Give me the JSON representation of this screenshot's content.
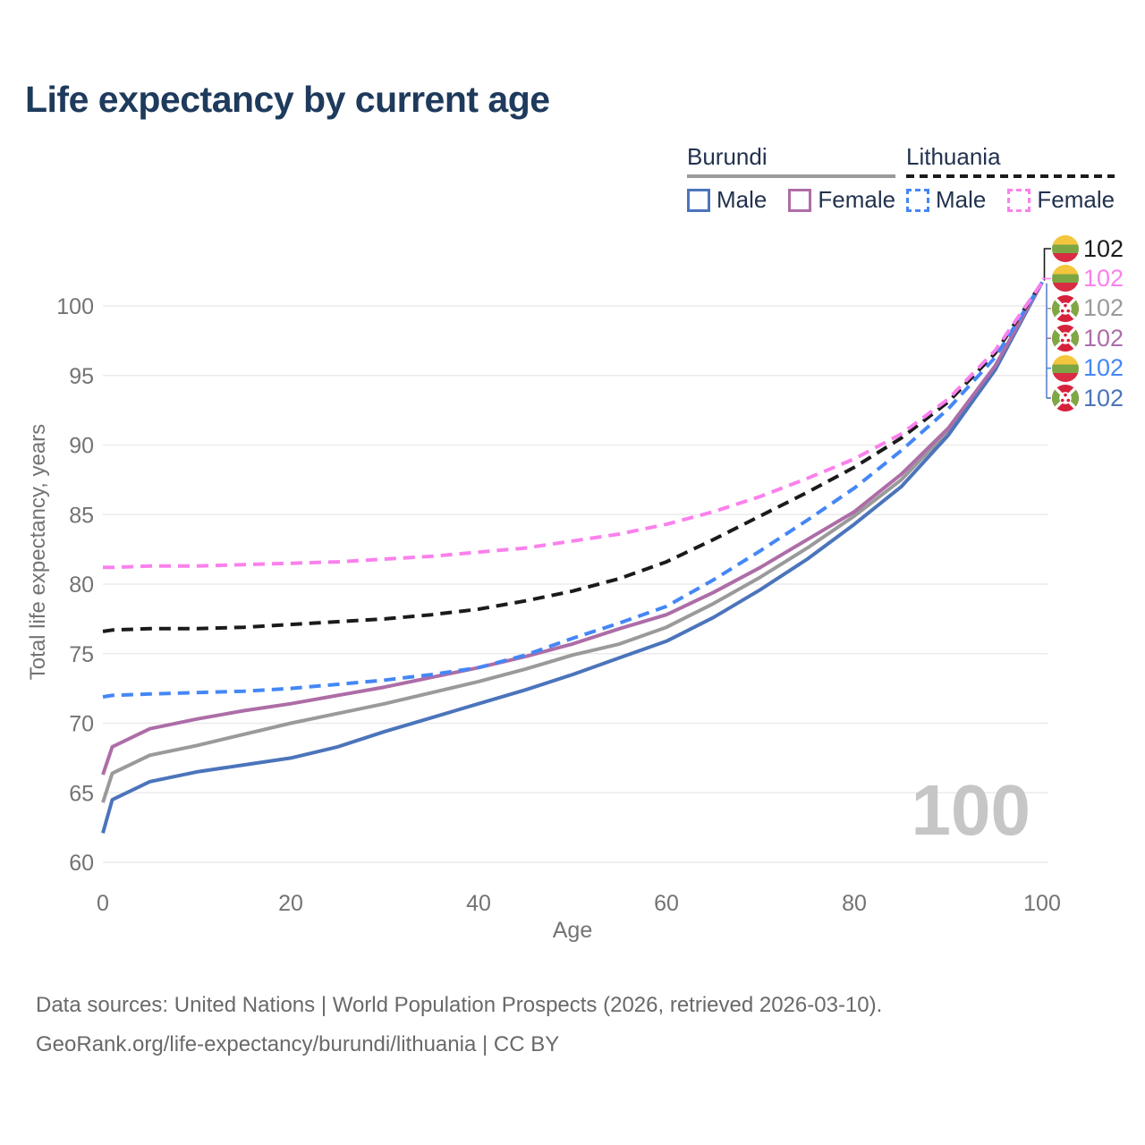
{
  "header": {
    "title": "Life expectancy by current age"
  },
  "legend": {
    "groups": [
      {
        "label": "Burundi",
        "line_style": "solid",
        "line_color": "#9a9a9a",
        "items": [
          {
            "label": "Male",
            "color": "#4b74bb",
            "dash": false
          },
          {
            "label": "Female",
            "color": "#ad6da7",
            "dash": false
          }
        ]
      },
      {
        "label": "Lithuania",
        "line_style": "dashed",
        "line_color": "#1b1b1b",
        "items": [
          {
            "label": "Male",
            "color": "#4487f6",
            "dash": true
          },
          {
            "label": "Female",
            "color": "#fb80ec",
            "dash": true
          }
        ]
      }
    ]
  },
  "plot": {
    "watermark": "100"
  },
  "end_labels": [
    {
      "flag": "lithuania",
      "value": "102",
      "color": "#1b1b1b",
      "series": "Lithuania both sexes"
    },
    {
      "flag": "lithuania",
      "value": "102",
      "color": "#fb80ec",
      "series": "Lithuania female"
    },
    {
      "flag": "burundi",
      "value": "102",
      "color": "#9a9a9a",
      "series": "Burundi both sexes"
    },
    {
      "flag": "burundi",
      "value": "102",
      "color": "#ad6da7",
      "series": "Burundi female"
    },
    {
      "flag": "lithuania",
      "value": "102",
      "color": "#4487f6",
      "series": "Lithuania male"
    },
    {
      "flag": "burundi",
      "value": "102",
      "color": "#4b74bb",
      "series": "Burundi male"
    }
  ],
  "footer": {
    "line1": "Data sources: United Nations | World Population Prospects (2026, retrieved 2026-03-10).",
    "line2": "GeoRank.org/life-expectancy/burundi/lithuania | CC BY"
  },
  "colors": {
    "title": "#1e3a5c",
    "axis_text": "#737373",
    "gridline": "#ebebeb",
    "watermark": "#c6c6c6",
    "leader_spine": "#5b82cf"
  },
  "chart_data": {
    "type": "line",
    "title": "Life expectancy by current age",
    "xlabel": "Age",
    "ylabel": "Total life expectancy, years",
    "xlim": [
      0,
      100
    ],
    "ylim": [
      60,
      100
    ],
    "xticks": [
      0,
      20,
      40,
      60,
      80,
      100
    ],
    "yticks": [
      60,
      65,
      70,
      75,
      80,
      85,
      90,
      95,
      100
    ],
    "grid": "horizontal",
    "legend_position": "top-right",
    "x": [
      0,
      1,
      5,
      10,
      15,
      20,
      25,
      30,
      35,
      40,
      45,
      50,
      55,
      60,
      65,
      70,
      75,
      80,
      85,
      90,
      95,
      100
    ],
    "series": [
      {
        "id": "burundi_total",
        "name": "Burundi both sexes",
        "color": "#9a9a9a",
        "dash": false,
        "values": [
          64.3,
          66.4,
          67.7,
          68.4,
          69.2,
          70.0,
          70.7,
          71.4,
          72.2,
          73.0,
          73.9,
          74.9,
          75.7,
          76.9,
          78.6,
          80.5,
          82.6,
          84.9,
          87.5,
          91.0,
          95.6,
          101.7
        ]
      },
      {
        "id": "burundi_male",
        "name": "Burundi male",
        "color": "#4b74bb",
        "dash": false,
        "values": [
          62.1,
          64.5,
          65.8,
          66.5,
          67.0,
          67.5,
          68.3,
          69.4,
          70.4,
          71.4,
          72.4,
          73.5,
          74.7,
          75.9,
          77.6,
          79.6,
          81.8,
          84.3,
          87.0,
          90.7,
          95.4,
          101.7
        ]
      },
      {
        "id": "burundi_female",
        "name": "Burundi female",
        "color": "#ad6da7",
        "dash": false,
        "values": [
          66.3,
          68.3,
          69.6,
          70.3,
          70.9,
          71.4,
          72.0,
          72.6,
          73.3,
          74.0,
          74.8,
          75.7,
          76.8,
          77.8,
          79.4,
          81.2,
          83.2,
          85.2,
          87.9,
          91.2,
          95.7,
          101.7
        ]
      },
      {
        "id": "lithuania_total",
        "name": "Lithuania both sexes",
        "color": "#1b1b1b",
        "dash": true,
        "values": [
          76.6,
          76.7,
          76.8,
          76.8,
          76.9,
          77.1,
          77.3,
          77.5,
          77.8,
          78.2,
          78.8,
          79.5,
          80.4,
          81.6,
          83.2,
          84.9,
          86.6,
          88.4,
          90.5,
          93.1,
          96.6,
          101.7
        ]
      },
      {
        "id": "lithuania_male",
        "name": "Lithuania male",
        "color": "#4487f6",
        "dash": true,
        "values": [
          71.9,
          72.0,
          72.1,
          72.2,
          72.3,
          72.5,
          72.8,
          73.1,
          73.5,
          74.0,
          74.9,
          76.1,
          77.2,
          78.4,
          80.3,
          82.4,
          84.6,
          86.9,
          89.6,
          92.6,
          96.3,
          101.7
        ]
      },
      {
        "id": "lithuania_female",
        "name": "Lithuania female",
        "color": "#fb80ec",
        "dash": true,
        "values": [
          81.2,
          81.2,
          81.3,
          81.3,
          81.4,
          81.5,
          81.6,
          81.8,
          82.0,
          82.3,
          82.6,
          83.1,
          83.6,
          84.3,
          85.2,
          86.3,
          87.6,
          89.0,
          90.8,
          93.3,
          96.8,
          101.7
        ]
      }
    ]
  }
}
